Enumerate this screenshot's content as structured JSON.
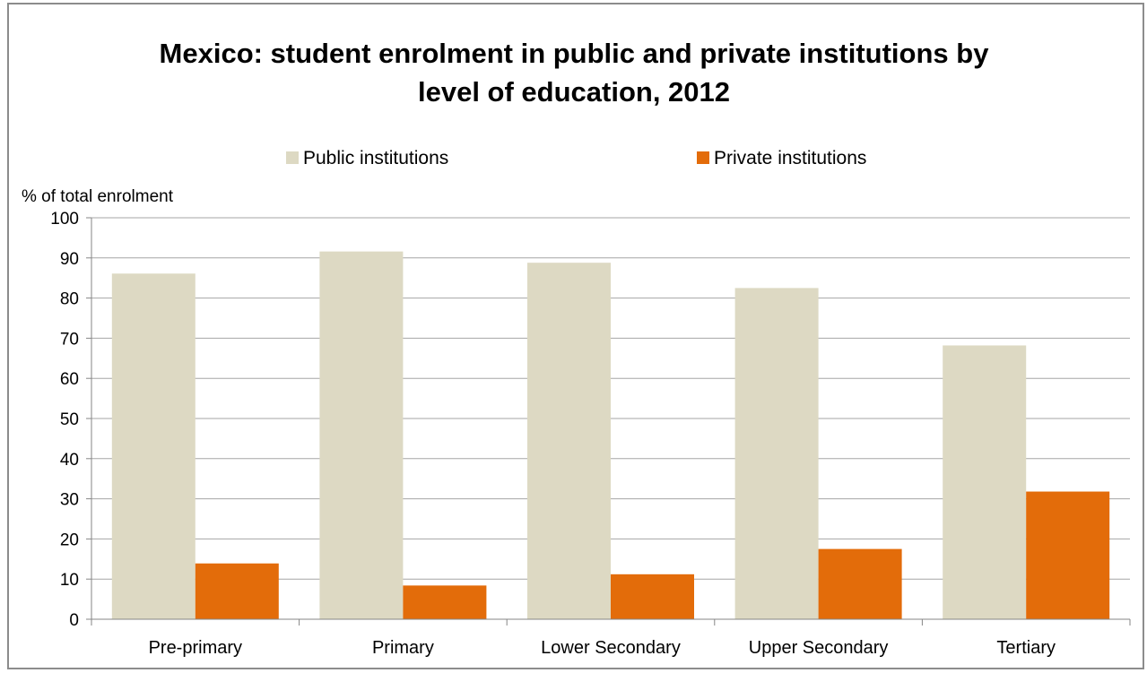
{
  "chart_data": {
    "type": "bar",
    "title_line1": "Mexico: student enrolment in public and private institutions by",
    "title_line2": "level of education,  2012",
    "ylabel": "% of total enrolment",
    "xlabel": "",
    "ylim": [
      0,
      100
    ],
    "ytick_step": 10,
    "grid": true,
    "legend_position": "top",
    "categories": [
      "Pre-primary",
      "Primary",
      "Lower Secondary",
      "Upper Secondary",
      "Tertiary"
    ],
    "series": [
      {
        "name": "Public institutions",
        "color": "#ddd9c3",
        "values": [
          86.1,
          91.6,
          88.8,
          82.5,
          68.2
        ]
      },
      {
        "name": "Private institutions",
        "color": "#e36c0a",
        "values": [
          13.9,
          8.4,
          11.2,
          17.5,
          31.8
        ]
      }
    ]
  }
}
